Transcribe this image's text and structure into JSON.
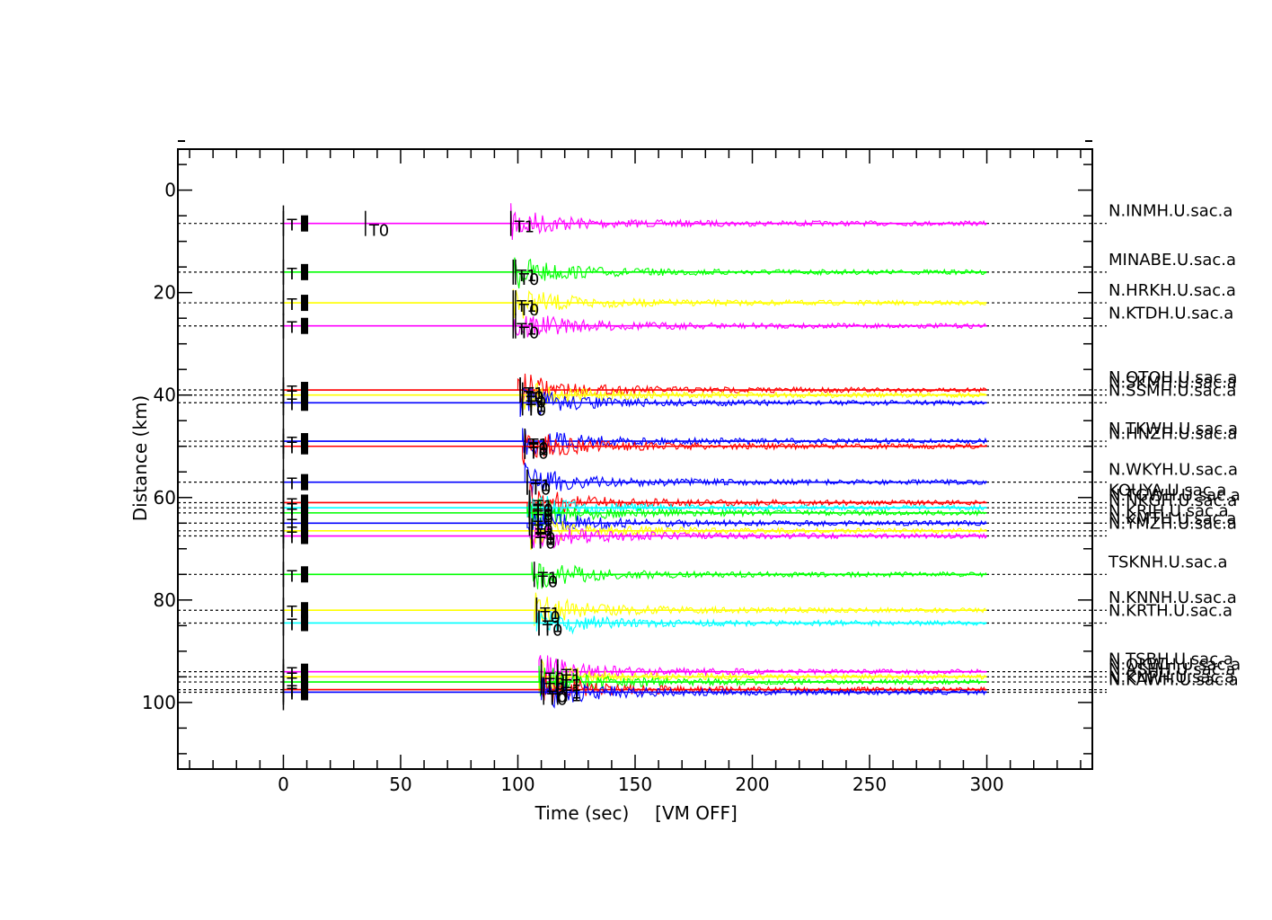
{
  "chart_data": {
    "type": "line",
    "title": "",
    "xlabel": "Time (sec)",
    "x_annotation": "[VM OFF]",
    "ylabel": "Distance (km)",
    "xlim": [
      -45,
      345
    ],
    "ylim": [
      -8,
      113
    ],
    "x_ticks": [
      0,
      50,
      100,
      150,
      200,
      250,
      300
    ],
    "y_ticks": [
      0,
      20,
      40,
      60,
      80,
      100
    ],
    "grid": false,
    "y_inverted": true,
    "trace_start": 0,
    "trace_end": 300,
    "colors": {
      "magenta": "#ff00ff",
      "green": "#00ff00",
      "yellow": "#ffff00",
      "red": "#ff0000",
      "blue": "#0000ff",
      "cyan": "#00ffff",
      "black": "#000000"
    },
    "series": [
      {
        "name": "N.INMH.U.sac.a",
        "distance": 6.5,
        "color": "magenta",
        "arrival": 97,
        "t0": 35,
        "t1": 97
      },
      {
        "name": "MINABE.U.sac.a",
        "distance": 16,
        "color": "green",
        "arrival": 98,
        "t0": 99,
        "t1": 98
      },
      {
        "name": "N.HRKH.U.sac.a",
        "distance": 22,
        "color": "yellow",
        "arrival": 98,
        "t0": 99,
        "t1": 98
      },
      {
        "name": "N.KTDH.U.sac.a",
        "distance": 26.5,
        "color": "magenta",
        "arrival": 98,
        "t0": 99,
        "t1": 98
      },
      {
        "name": "N.OTOH.U.sac.a",
        "distance": 39,
        "color": "red",
        "arrival": 100,
        "t0": 101,
        "t1": 101
      },
      {
        "name": "N.SKMH.U.sac.a",
        "distance": 40,
        "color": "yellow",
        "arrival": 101,
        "t0": 102,
        "t1": 102
      },
      {
        "name": "N.SSMH.U.sac.a",
        "distance": 41.5,
        "color": "blue",
        "arrival": 101,
        "t0": 102,
        "t1": 102
      },
      {
        "name": "N.TKWH.U.sac.a",
        "distance": 49,
        "color": "blue",
        "arrival": 102,
        "t0": 103,
        "t1": 103
      },
      {
        "name": "N.HNZH.U.sac.a",
        "distance": 50,
        "color": "red",
        "arrival": 102,
        "t0": 103,
        "t1": 103
      },
      {
        "name": "N.WKYH.U.sac.a",
        "distance": 57,
        "color": "blue",
        "arrival": 103,
        "t0": 104,
        "t1": 104
      },
      {
        "name": "KOUYA.U.sac.a",
        "distance": 61,
        "color": "red",
        "arrival": 104,
        "t0": 105,
        "t1": 105
      },
      {
        "name": "N.TGWH.U.sac.a",
        "distance": 62,
        "color": "cyan",
        "arrival": 104,
        "t0": 105,
        "t1": 105
      },
      {
        "name": "N.NKGH.U.sac.a",
        "distance": 63,
        "color": "green",
        "arrival": 104,
        "t0": 105,
        "t1": 105
      },
      {
        "name": "N.KRIH.U.sac.a",
        "distance": 65,
        "color": "blue",
        "arrival": 104,
        "t0": 105,
        "t1": 105
      },
      {
        "name": "N.KMTH.U.sac.a",
        "distance": 66.5,
        "color": "yellow",
        "arrival": 105,
        "t0": 106,
        "t1": 106
      },
      {
        "name": "N.YMZH.U.sac.a",
        "distance": 67.5,
        "color": "magenta",
        "arrival": 105,
        "t0": 106,
        "t1": 106
      },
      {
        "name": "TSKNH.U.sac.a",
        "distance": 75,
        "color": "green",
        "arrival": 106,
        "t0": 107,
        "t1": 107
      },
      {
        "name": "N.KNNH.U.sac.a",
        "distance": 82,
        "color": "yellow",
        "arrival": 107,
        "t0": 108,
        "t1": 108
      },
      {
        "name": "N.KRTH.U.sac.a",
        "distance": 84.5,
        "color": "cyan",
        "arrival": 108,
        "t0": 109,
        "t1": 109
      },
      {
        "name": "N.TSBH.U.sac.a",
        "distance": 94,
        "color": "magenta",
        "arrival": 109,
        "t0": 110,
        "t1": 117
      },
      {
        "name": "N.OKWH.U.sac.a",
        "distance": 95,
        "color": "yellow",
        "arrival": 109,
        "t0": 110,
        "t1": 117
      },
      {
        "name": "N.ASHH.U.sac.a",
        "distance": 96,
        "color": "green",
        "arrival": 109,
        "t0": 110,
        "t1": 117
      },
      {
        "name": "N.KNPH.U.sac.a",
        "distance": 97.5,
        "color": "red",
        "arrival": 110,
        "t0": 111,
        "t1": 117
      },
      {
        "name": "N.KAWH.U.sac.a",
        "distance": 98,
        "color": "blue",
        "arrival": 110,
        "t0": 111,
        "t1": 117
      }
    ]
  }
}
